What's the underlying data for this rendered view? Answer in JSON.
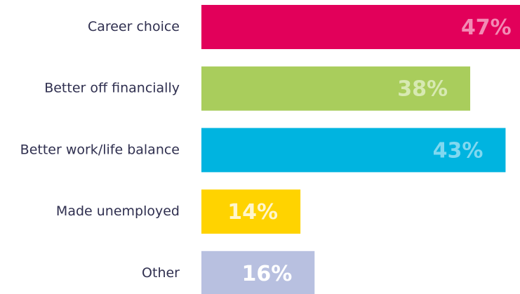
{
  "chart_data": {
    "type": "bar",
    "orientation": "horizontal",
    "categories": [
      "Career choice",
      "Better off financially",
      "Better work/life balance",
      "Made unemployed",
      "Other"
    ],
    "values": [
      47,
      38,
      43,
      14,
      16
    ],
    "value_labels": [
      "47%",
      "38%",
      "43%",
      "14%",
      "16%"
    ],
    "colors": [
      "#e2005a",
      "#a9cd5c",
      "#00b4e0",
      "#ffd300",
      "#b8c0e0"
    ],
    "label_colors": [
      "#f28bb4",
      "#d7e9b2",
      "#80d8f0",
      "#fff6cc",
      "#ffffff"
    ]
  }
}
